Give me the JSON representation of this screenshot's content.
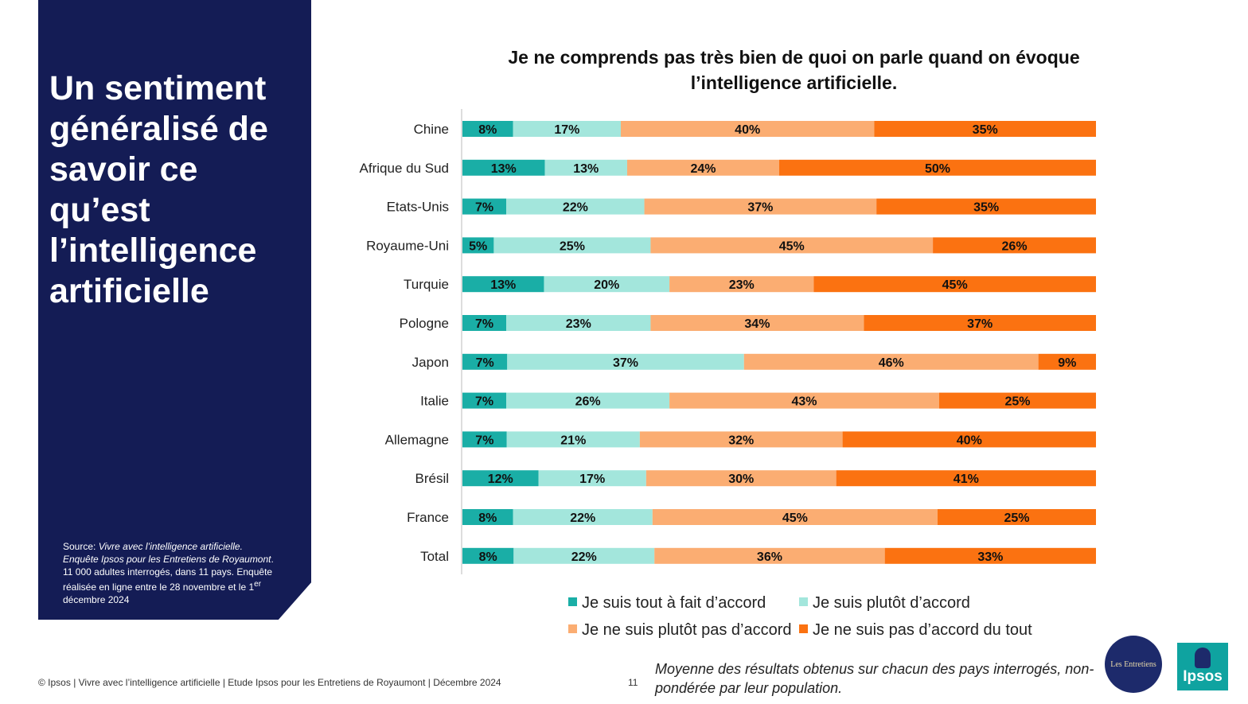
{
  "panel": {
    "title": "Un sentiment généralisé de savoir ce qu’est l’intelligence artificielle",
    "source_prefix": "Source: ",
    "source_italic": "Vivre avec l’intelligence artificielle. Enquête Ipsos pour les Entretiens de Royaumont",
    "source_rest": ". 11 000 adultes interrogés, dans 11 pays. Enquête réalisée en ligne entre le 28 novembre et le 1",
    "source_sup": "er",
    "source_end": " décembre 2024"
  },
  "footer": {
    "text": "© Ipsos | Vivre avec l’intelligence artificielle | Etude Ipsos pour les Entretiens de Royaumont | Décembre 2024",
    "page": "11",
    "note": "Moyenne des résultats obtenus sur chacun des pays interrogés, non-pondérée par leur population."
  },
  "logos": {
    "entretiens": "Les Entretiens",
    "ipsos": "Ipsos"
  },
  "colors": {
    "tout_a_fait": "#1aaea6",
    "plutot": "#a3e6dc",
    "plutot_pas": "#fbad72",
    "pas_du_tout": "#fb7211",
    "panel": "#141c55"
  },
  "chart_data": {
    "type": "bar",
    "orientation": "horizontal",
    "stacked": true,
    "title": "Je ne comprends pas très bien de quoi on parle quand on évoque l’intelligence artificielle.",
    "categories": [
      "Chine",
      "Afrique du Sud",
      "Etats-Unis",
      "Royaume-Uni",
      "Turquie",
      "Pologne",
      "Japon",
      "Italie",
      "Allemagne",
      "Brésil",
      "France",
      "Total"
    ],
    "series": [
      {
        "name": "Je suis tout à fait d’accord",
        "values": [
          8,
          13,
          7,
          5,
          13,
          7,
          7,
          7,
          7,
          12,
          8,
          8
        ]
      },
      {
        "name": "Je suis plutôt d’accord",
        "values": [
          17,
          13,
          22,
          25,
          20,
          23,
          37,
          26,
          21,
          17,
          22,
          22
        ]
      },
      {
        "name": "Je ne suis plutôt pas d’accord",
        "values": [
          40,
          24,
          37,
          45,
          23,
          34,
          46,
          43,
          32,
          30,
          45,
          36
        ]
      },
      {
        "name": "Je ne suis pas d’accord du tout",
        "values": [
          35,
          50,
          35,
          26,
          45,
          37,
          9,
          25,
          40,
          41,
          25,
          33
        ]
      }
    ],
    "value_suffix": "%",
    "legend_position": "bottom",
    "grid": false
  }
}
